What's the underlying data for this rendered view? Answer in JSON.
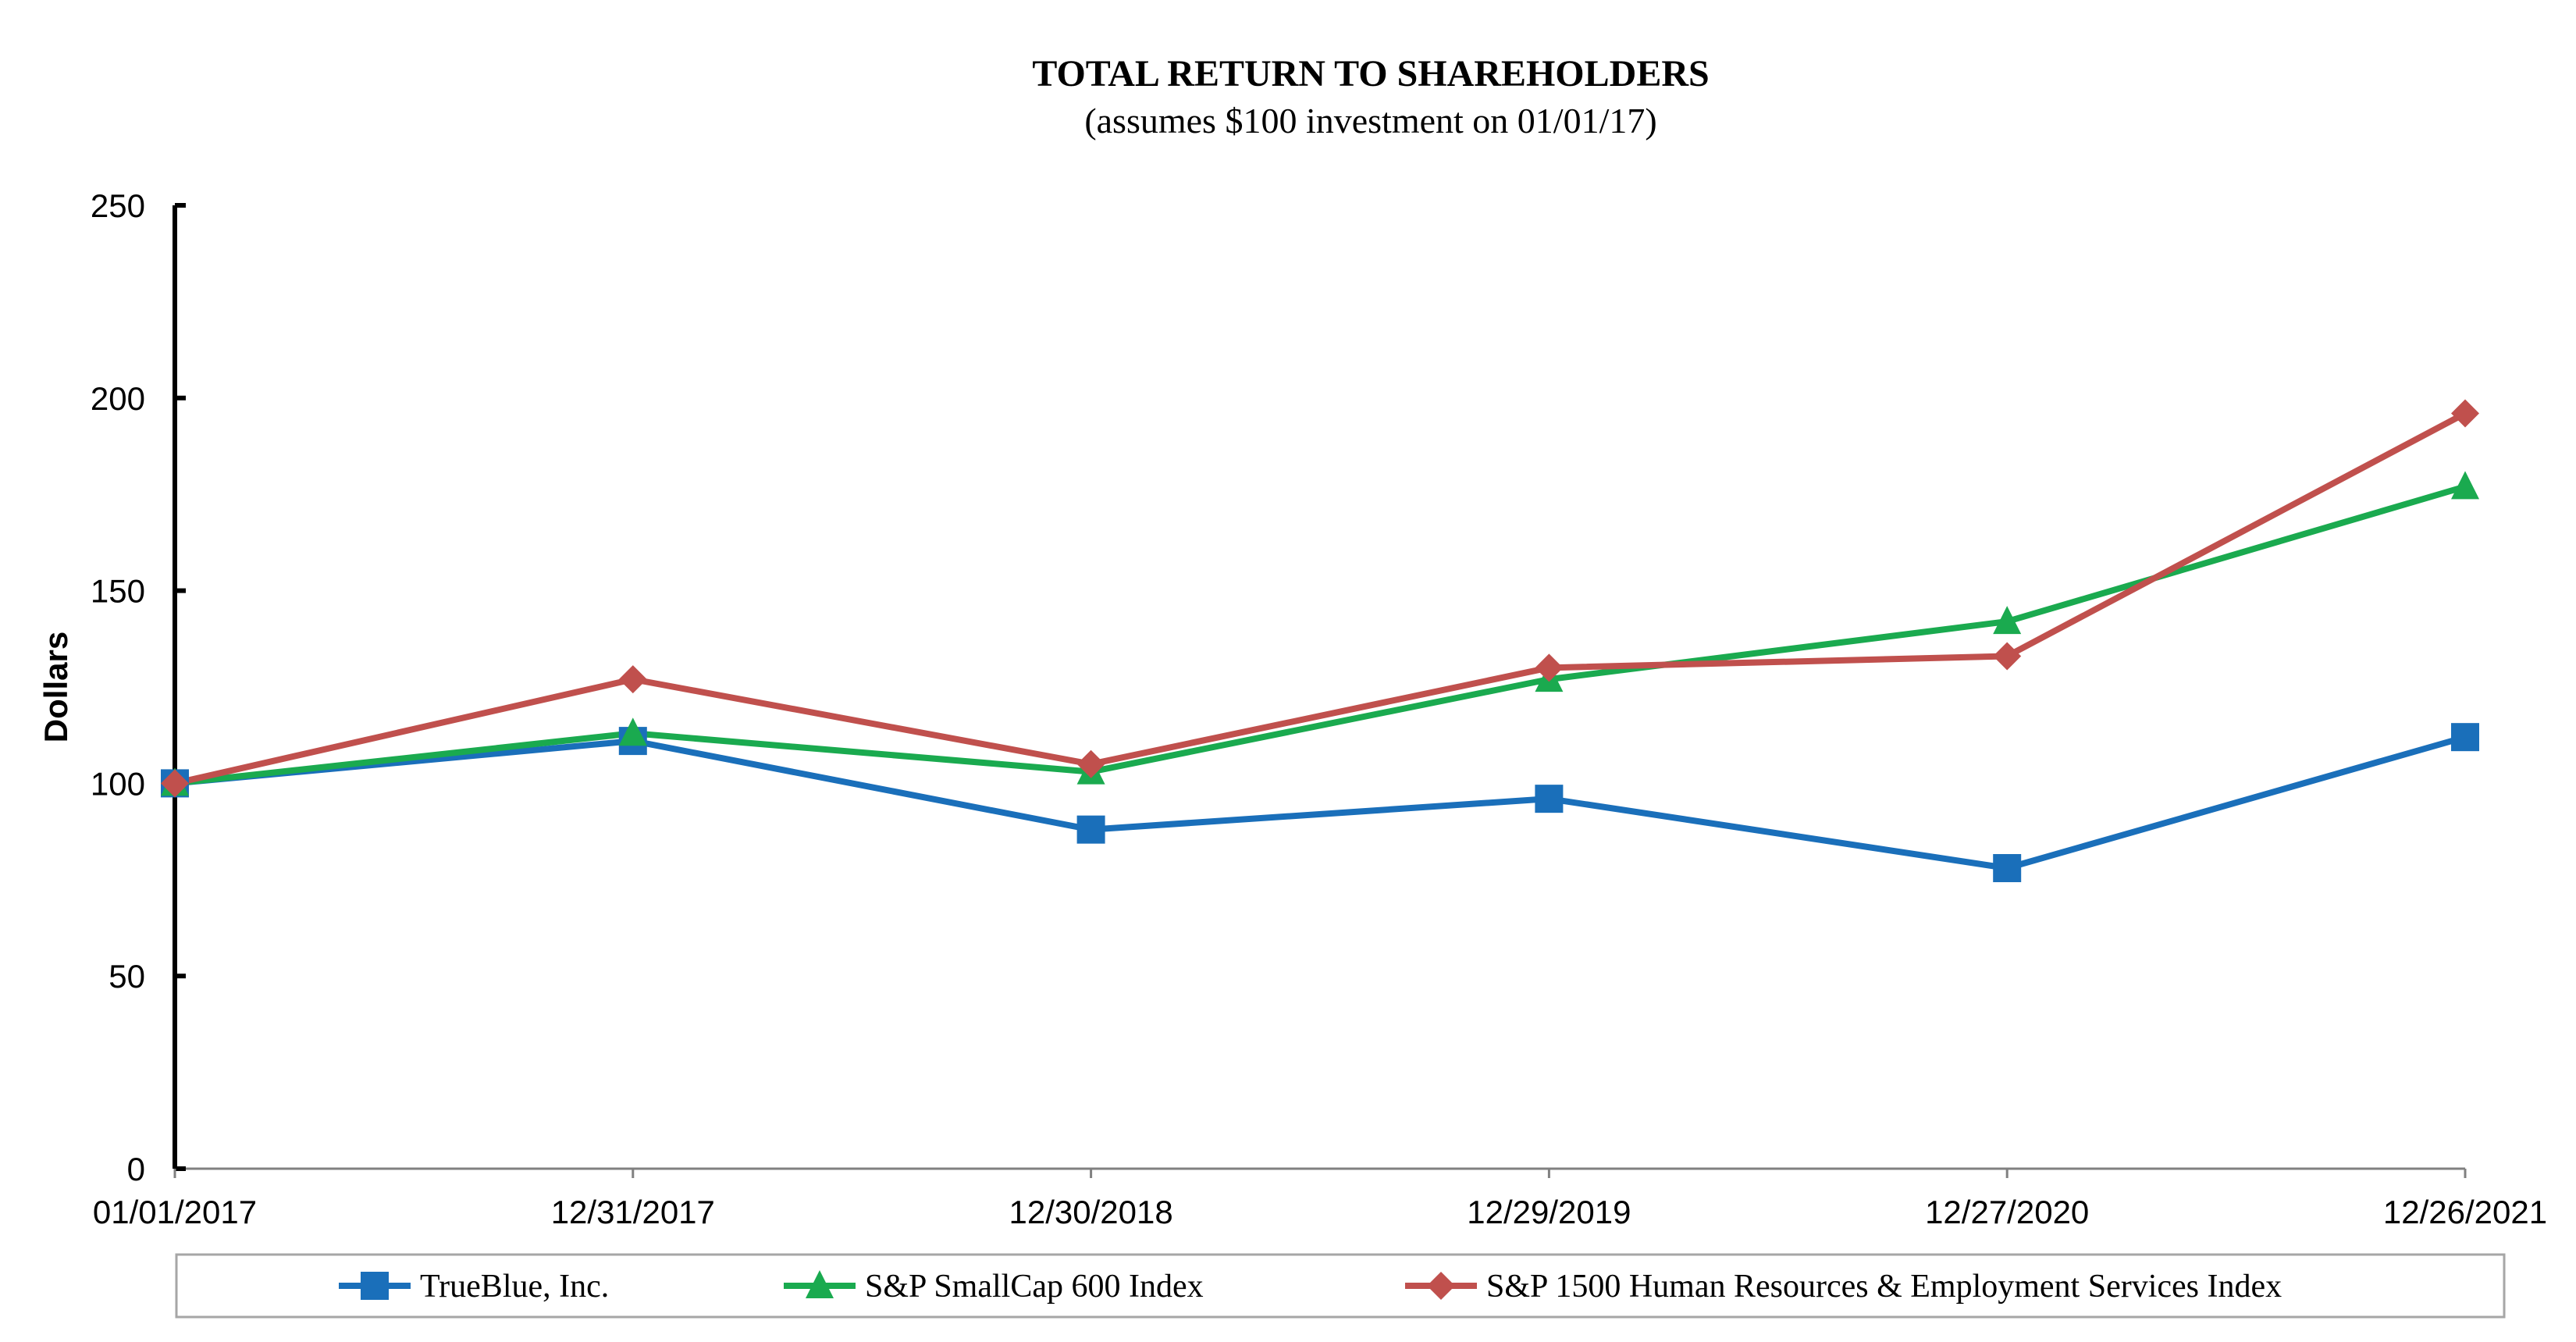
{
  "chart_data": {
    "type": "line",
    "title": "TOTAL RETURN TO SHAREHOLDERS",
    "subtitle": "(assumes $100 investment on 01/01/17)",
    "xlabel": "",
    "ylabel": "Dollars",
    "ylim": [
      0,
      250
    ],
    "yticks": [
      0,
      50,
      100,
      150,
      200,
      250
    ],
    "categories": [
      "01/01/2017",
      "12/31/2017",
      "12/30/2018",
      "12/29/2019",
      "12/27/2020",
      "12/26/2021"
    ],
    "grid": false,
    "legend_position": "bottom",
    "series": [
      {
        "name": "TrueBlue, Inc.",
        "color": "#1a6fba",
        "marker": "square",
        "values": [
          100,
          111,
          88,
          96,
          78,
          112
        ]
      },
      {
        "name": "S&P SmallCap 600 Index",
        "color": "#1aaa4f",
        "marker": "triangle",
        "values": [
          100,
          113,
          103,
          127,
          142,
          177
        ]
      },
      {
        "name": "S&P 1500 Human Resources & Employment Services Index",
        "color": "#c0504d",
        "marker": "diamond",
        "values": [
          100,
          127,
          105,
          130,
          133,
          196
        ]
      }
    ]
  }
}
